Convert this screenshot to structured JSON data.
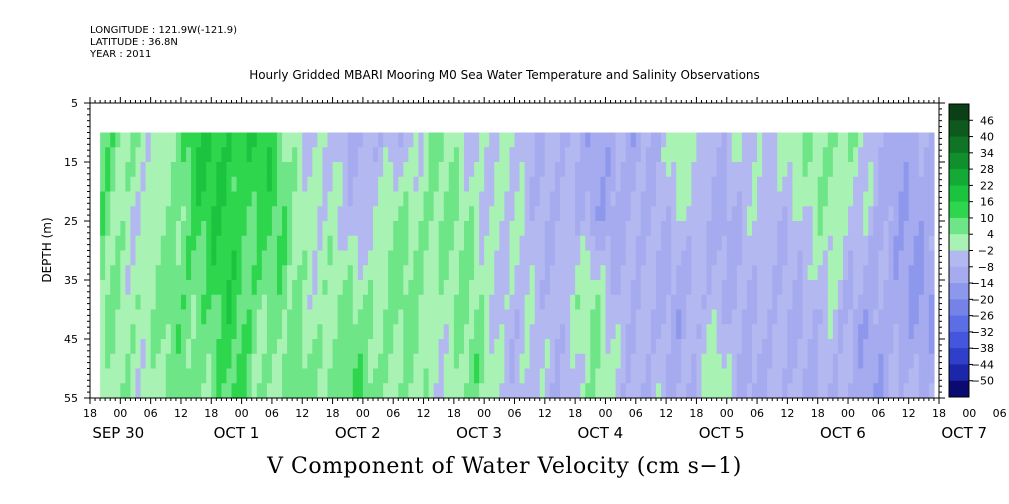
{
  "header": {
    "longitude": "LONGITUDE : 121.9W(-121.9)",
    "latitude": "LATITUDE : 36.8N",
    "year": "YEAR : 2011"
  },
  "chart_data": {
    "type": "heatmap",
    "title": "Hourly Gridded MBARI Mooring M0 Sea Water Temperature and Salinity Observations",
    "xlabel": "V Component of Water Velocity (cm s−1)",
    "ylabel": "DEPTH (m)",
    "ylim": [
      5,
      55
    ],
    "y_inverted": true,
    "y_ticks": [
      5,
      15,
      25,
      35,
      45,
      55
    ],
    "x_hours_range": [
      18,
      186
    ],
    "x_tick_hours": [
      "18",
      "00",
      "06",
      "12",
      "18",
      "00",
      "06",
      "12",
      "18",
      "00",
      "06",
      "12",
      "18",
      "00",
      "06",
      "12",
      "18",
      "00",
      "06",
      "12",
      "18",
      "00",
      "06",
      "12",
      "18",
      "00",
      "06",
      "12",
      "18",
      "00",
      "06",
      "12",
      "18"
    ],
    "x_day_labels": [
      "SEP 30",
      "OCT  1",
      "OCT  2",
      "OCT  3",
      "OCT  4",
      "OCT  5",
      "OCT  6",
      "OCT  7"
    ],
    "data_depth_range": [
      10,
      55
    ],
    "colorbar_levels": [
      "46",
      "40",
      "34",
      "28",
      "22",
      "16",
      "10",
      "4",
      "−2",
      "−8",
      "−14",
      "−20",
      "−26",
      "−32",
      "−38",
      "−44",
      "−50"
    ],
    "colorbar_colors": [
      "#0b3f16",
      "#0e5a1e",
      "#0f7426",
      "#10902d",
      "#13ab35",
      "#1ac43e",
      "#2ed64d",
      "#6ee587",
      "#a8f2b4",
      "#b4b8f0",
      "#a5abee",
      "#8d98ec",
      "#7583e8",
      "#5c6ee6",
      "#4457dc",
      "#2f3fc9",
      "#1c26a9",
      "#0a0a70"
    ],
    "approx_value_field": {
      "time_hours": [
        18,
        22,
        30,
        38,
        46,
        54,
        62,
        70,
        78,
        86,
        94,
        102,
        110,
        118,
        126,
        134,
        142,
        150,
        158,
        166,
        174,
        182
      ],
      "depths_m": [
        12,
        25,
        40,
        52
      ],
      "v_cm_s": [
        [
          8,
          10,
          -3,
          14,
          16,
          12,
          -4,
          -6,
          -8,
          4,
          -3,
          -2,
          -8,
          -10,
          -12,
          2,
          -6,
          -4,
          2,
          6,
          -8,
          -12
        ],
        [
          6,
          6,
          -4,
          12,
          14,
          10,
          2,
          -6,
          4,
          6,
          2,
          -4,
          -6,
          -10,
          -10,
          -4,
          -10,
          -6,
          -4,
          4,
          -10,
          -12
        ],
        [
          4,
          2,
          4,
          8,
          12,
          6,
          2,
          4,
          6,
          2,
          4,
          -6,
          -4,
          4,
          -8,
          -10,
          -6,
          -8,
          -8,
          -6,
          -12,
          -14
        ],
        [
          2,
          0,
          2,
          6,
          10,
          4,
          6,
          8,
          4,
          0,
          6,
          -4,
          -6,
          2,
          -6,
          -8,
          2,
          -10,
          -6,
          -8,
          -12,
          -6
        ]
      ]
    }
  }
}
